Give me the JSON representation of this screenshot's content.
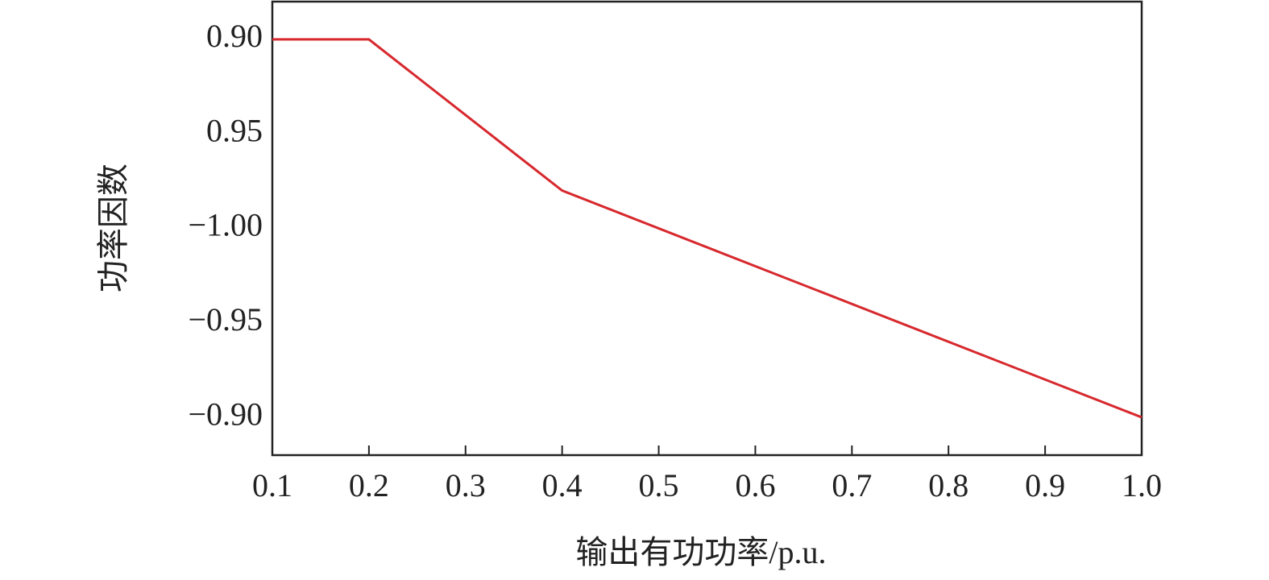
{
  "chart_data": {
    "type": "line",
    "x_label": "输出有功功率/p.u.",
    "y_label": "功率因数",
    "x": [
      0.1,
      0.2,
      0.4,
      1
    ],
    "series": [
      {
        "color": "#d7282d",
        "values": [
          0.9,
          0.9,
          0.98,
          -0.9
        ]
      }
    ],
    "xlim": [
      0.1,
      1
    ],
    "xticks": [
      0.1,
      0.2,
      0.3,
      0.4,
      0.5,
      0.6,
      0.7,
      0.8,
      0.9,
      {
        "value": 1,
        "label": "1.0"
      }
    ],
    "ylim": [
      -0.88,
      0.88
    ],
    "yticks": [
      {
        "value": 0.9,
        "label": "0.90"
      },
      {
        "value": 0.95,
        "label": "0.95"
      },
      {
        "value": -1,
        "label": "−1.00"
      },
      {
        "value": -0.95,
        "label": "−0.95"
      },
      {
        "value": -0.9,
        "label": "−0.90"
      }
    ]
  }
}
